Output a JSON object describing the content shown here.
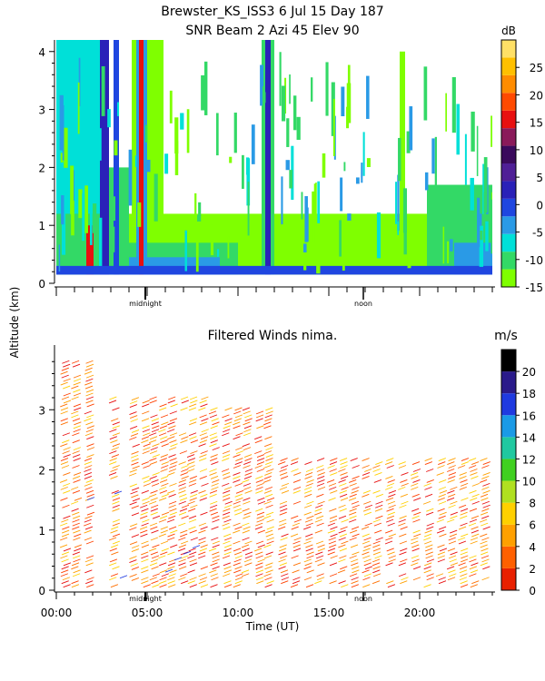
{
  "header": {
    "line1": "Brewster_KS_ISS3   6 Jul 15 Day 187",
    "line2": "SNR Beam 2 Azi  45 Elev 90"
  },
  "chart_data": [
    {
      "type": "heatmap",
      "title": "SNR Beam 2 Azi  45 Elev 90",
      "ylabel": "Altitude (km)",
      "ylim": [
        0,
        4.2
      ],
      "yticks": [
        "0",
        "1",
        "2",
        "3",
        "4"
      ],
      "xlim": [
        "00:00",
        "24:00"
      ],
      "markers": [
        "midnight",
        "noon"
      ],
      "colorbar": {
        "unit": "dB",
        "ticks": [
          "25",
          "20",
          "15",
          "10",
          "5",
          "0",
          "-5",
          "-10",
          "-15"
        ],
        "range": [
          -15,
          30
        ],
        "colors": [
          "#7fff00",
          "#33d966",
          "#00e0d8",
          "#2a9ae6",
          "#1f46e0",
          "#2a21b8",
          "#4f1f96",
          "#3a0a5c",
          "#8a1a5a",
          "#e81010",
          "#ff4a00",
          "#ff8c00",
          "#ffc000",
          "#ffe066"
        ]
      }
    },
    {
      "type": "scatter",
      "title": "Filtered Winds nima.",
      "xlabel": "Time (UT)",
      "ylabel": "Altitude (km)",
      "xticks": [
        "00:00",
        "05:00",
        "10:00",
        "15:00",
        "20:00"
      ],
      "xlim": [
        0,
        24
      ],
      "ylim": [
        0,
        4
      ],
      "yticks": [
        "0",
        "1",
        "2",
        "3"
      ],
      "markers": [
        "midnight",
        "noon"
      ],
      "colorbar": {
        "unit": "m/s",
        "ticks": [
          "20",
          "18",
          "16",
          "14",
          "12",
          "10",
          "8",
          "6",
          "4",
          "2",
          "0"
        ],
        "range": [
          0,
          22
        ],
        "colors": [
          "#000000",
          "#2a1a8a",
          "#1f3ae0",
          "#1a9ae6",
          "#20c8a0",
          "#40d020",
          "#b0e020",
          "#ffd000",
          "#ffa000",
          "#ff6000",
          "#e82000"
        ]
      }
    }
  ]
}
